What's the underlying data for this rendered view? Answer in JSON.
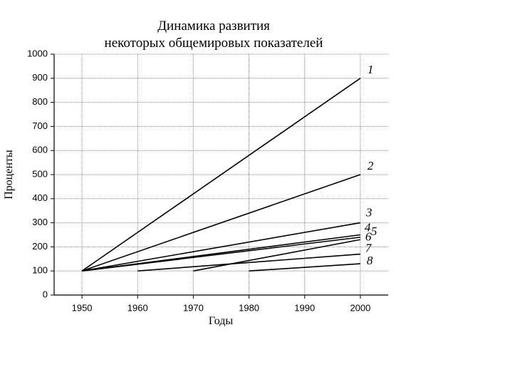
{
  "chart_data": {
    "type": "line",
    "title": [
      "Динамика развития",
      "некоторых общемировых показателей"
    ],
    "xlabel": "Годы",
    "ylabel": "Проценты",
    "xlim": [
      1945,
      2005
    ],
    "xticks": [
      1950,
      1960,
      1970,
      1980,
      1990,
      2000
    ],
    "ylim": [
      0,
      1000
    ],
    "yticks": [
      0,
      100,
      200,
      300,
      400,
      500,
      600,
      700,
      800,
      900,
      1000
    ],
    "grid": true,
    "series": [
      {
        "name": "1",
        "color": "#000000",
        "x": [
          1950,
          2000
        ],
        "values": [
          100,
          900
        ]
      },
      {
        "name": "2",
        "color": "#000000",
        "x": [
          1950,
          2000
        ],
        "values": [
          100,
          500
        ]
      },
      {
        "name": "3",
        "color": "#000000",
        "x": [
          1950,
          2000
        ],
        "values": [
          100,
          300
        ]
      },
      {
        "name": "4",
        "color": "#000000",
        "x": [
          1950,
          2000
        ],
        "values": [
          100,
          250
        ]
      },
      {
        "name": "5",
        "color": "#000000",
        "x": [
          1950,
          2000
        ],
        "values": [
          100,
          240
        ]
      },
      {
        "name": "6",
        "color": "#000000",
        "x": [
          1970,
          2000
        ],
        "values": [
          100,
          230
        ]
      },
      {
        "name": "7",
        "color": "#000000",
        "x": [
          1960,
          2000
        ],
        "values": [
          100,
          170
        ]
      },
      {
        "name": "8",
        "color": "#000000",
        "x": [
          1980,
          2000
        ],
        "values": [
          100,
          130
        ]
      }
    ]
  }
}
